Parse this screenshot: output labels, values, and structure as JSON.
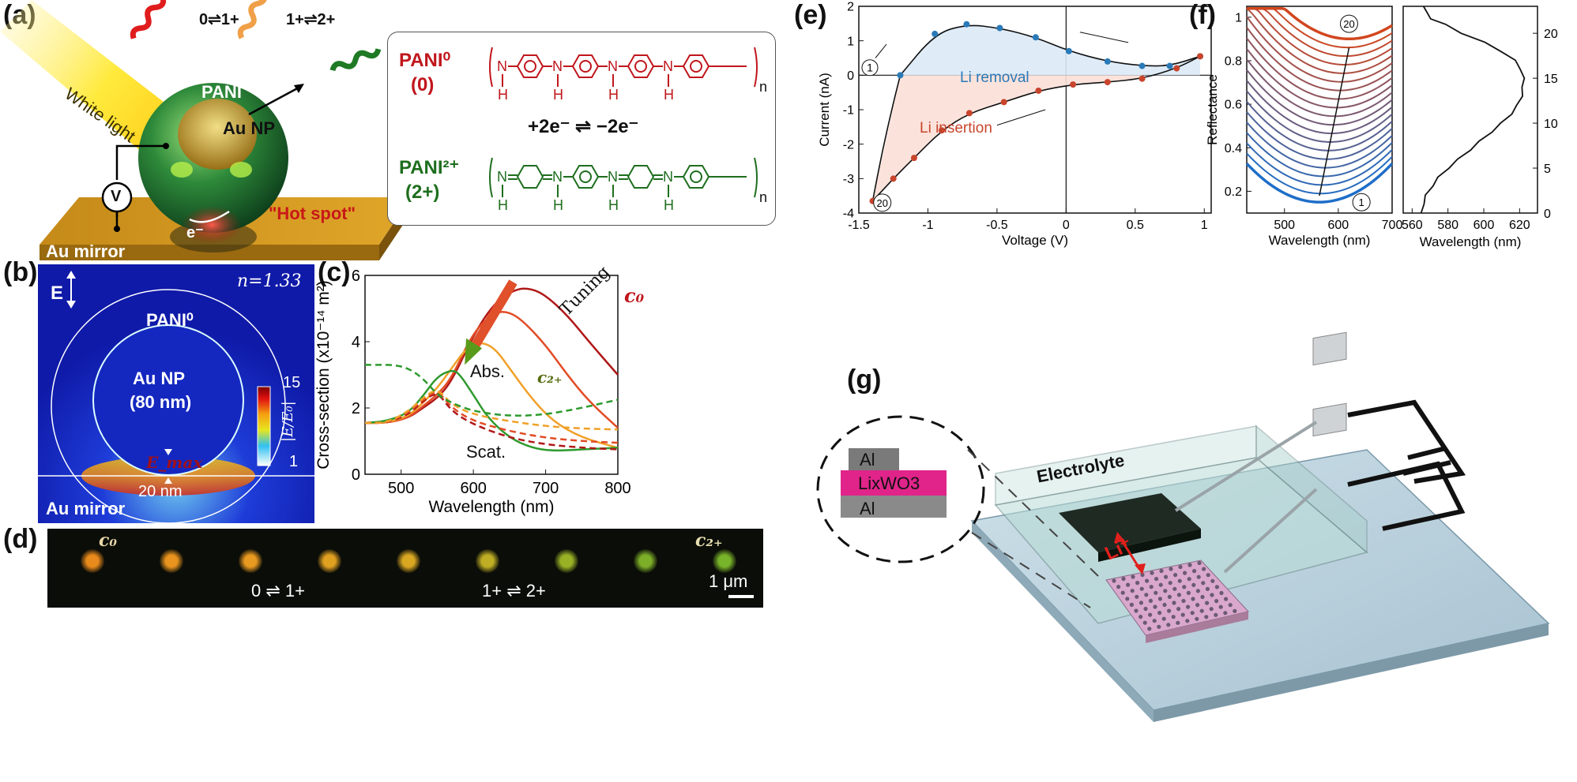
{
  "colors": {
    "pani0": "#c0161c",
    "pani2": "#1e6e1e",
    "accent_blue": "#2a7ab8",
    "accent_red": "#c8452c",
    "gold": "#d4a017"
  },
  "panel_a": {
    "label": "(a)",
    "white_light": "White light",
    "pani": "PANI",
    "au_np": "Au NP",
    "hot_spot": "\"Hot spot\"",
    "electron": "e⁻",
    "au_mirror": "Au mirror",
    "voltmeter": "V",
    "transition1": "0⇌1+",
    "transition2": "1+⇌2+",
    "pani0_name": "PANI⁰",
    "pani0_state": "(0)",
    "pani2_name": "PANI²⁺",
    "pani2_state": "(2+)",
    "redox": "+2e⁻ ⇌ −2e⁻",
    "chain_sub": "n"
  },
  "panel_b": {
    "label": "(b)",
    "field": "E",
    "n_value": "n=1.33",
    "pani0": "PANI⁰",
    "au_np": "Au NP",
    "size": "(80 nm)",
    "emax": "E_max",
    "gap": "20 nm",
    "mirror": "Au mirror",
    "cbar_max": "15",
    "cbar_min": "1",
    "cbar_label": "|E/E₀|"
  },
  "panel_c": {
    "label": "(c)",
    "tuning": "Tuning",
    "c0": "c₀",
    "c2": "c₂₊",
    "abs": "Abs.",
    "scat": "Scat."
  },
  "panel_d": {
    "label": "(d)",
    "c0": "c₀",
    "c2": "c₂₊",
    "t1": "0 ⇌ 1+",
    "t2": "1+ ⇌ 2+",
    "scale": "1 μm",
    "spots": [
      "#e88a1c",
      "#e8941e",
      "#e99a20",
      "#e0a020",
      "#d9a722",
      "#bfae24",
      "#98b226",
      "#7cae28",
      "#78b42a"
    ]
  },
  "panel_e": {
    "label": "(e)",
    "li_removal": "Li removal",
    "li_insertion": "Li insertion",
    "start": "1",
    "end": "20"
  },
  "panel_f": {
    "label": "(f)",
    "marker_top": "20",
    "marker_bottom": "1"
  },
  "panel_g": {
    "label": "(g)",
    "electrolyte": "Electrolyte",
    "li": "Li⁺",
    "al_top": "Al",
    "liwo3": "LixWO3",
    "al_bottom": "Al"
  },
  "chart_data": [
    {
      "type": "line",
      "title": "",
      "xlabel": "Wavelength (nm)",
      "ylabel": "Cross-section (x10⁻¹⁴ m²)",
      "xlim": [
        450,
        800
      ],
      "ylim": [
        0,
        6
      ],
      "xticks": [
        500,
        600,
        700,
        800
      ],
      "yticks": [
        0,
        2,
        4,
        6
      ],
      "series": [
        {
          "name": "Scat. c0",
          "color": "#b01818",
          "dash": false,
          "x": [
            450,
            480,
            510,
            530,
            550,
            570,
            600,
            630,
            660,
            680,
            700,
            730,
            760,
            800
          ],
          "y": [
            1.55,
            1.55,
            1.7,
            2.0,
            2.3,
            2.8,
            4.2,
            5.2,
            5.6,
            5.6,
            5.4,
            4.8,
            4.0,
            3.0
          ]
        },
        {
          "name": "Scat. mid1",
          "color": "#e24c26",
          "dash": false,
          "x": [
            450,
            480,
            510,
            530,
            550,
            570,
            600,
            630,
            650,
            670,
            700,
            730,
            760,
            800
          ],
          "y": [
            1.55,
            1.55,
            1.7,
            2.05,
            2.4,
            2.9,
            4.3,
            4.9,
            4.9,
            4.6,
            3.9,
            3.0,
            2.2,
            1.4
          ]
        },
        {
          "name": "Scat. mid2",
          "color": "#f0a028",
          "dash": false,
          "x": [
            450,
            480,
            510,
            530,
            550,
            570,
            590,
            610,
            630,
            650,
            680,
            710,
            750,
            800
          ],
          "y": [
            1.55,
            1.55,
            1.75,
            2.15,
            2.6,
            3.2,
            3.8,
            4.0,
            3.8,
            3.2,
            2.3,
            1.6,
            1.1,
            0.8
          ]
        },
        {
          "name": "Scat. c2+",
          "color": "#2e9a2e",
          "dash": false,
          "x": [
            450,
            480,
            510,
            530,
            550,
            570,
            580,
            600,
            620,
            650,
            680,
            710,
            750,
            800
          ],
          "y": [
            1.55,
            1.6,
            1.85,
            2.35,
            2.95,
            3.15,
            3.05,
            2.4,
            1.7,
            1.1,
            0.8,
            0.7,
            0.75,
            0.8
          ]
        },
        {
          "name": "Abs. c0",
          "color": "#b01818",
          "dash": true,
          "x": [
            450,
            480,
            510,
            530,
            550,
            570,
            600,
            650,
            700,
            750,
            800
          ],
          "y": [
            1.55,
            1.55,
            1.8,
            2.2,
            2.5,
            1.9,
            1.5,
            1.1,
            0.9,
            0.8,
            0.75
          ]
        },
        {
          "name": "Abs. mid1",
          "color": "#e24c26",
          "dash": true,
          "x": [
            450,
            480,
            510,
            530,
            550,
            570,
            600,
            650,
            700,
            750,
            800
          ],
          "y": [
            1.55,
            1.55,
            1.85,
            2.25,
            2.55,
            2.0,
            1.6,
            1.3,
            1.1,
            1.0,
            0.95
          ]
        },
        {
          "name": "Abs. mid2",
          "color": "#f0a028",
          "dash": true,
          "x": [
            450,
            480,
            510,
            530,
            550,
            570,
            600,
            650,
            700,
            750,
            800
          ],
          "y": [
            1.55,
            1.55,
            1.9,
            2.3,
            2.6,
            2.1,
            1.8,
            1.6,
            1.45,
            1.38,
            1.35
          ]
        },
        {
          "name": "Abs. c2+",
          "color": "#2e9a2e",
          "dash": true,
          "x": [
            450,
            470,
            490,
            510,
            530,
            550,
            570,
            600,
            650,
            700,
            750,
            800
          ],
          "y": [
            3.3,
            3.3,
            3.3,
            3.2,
            2.9,
            2.4,
            2.15,
            1.9,
            1.75,
            1.8,
            2.0,
            2.25
          ]
        }
      ]
    },
    {
      "type": "line",
      "title": "",
      "xlabel": "Voltage (V)",
      "ylabel": "Current (nA)",
      "xlim": [
        -1.5,
        1.05
      ],
      "ylim": [
        -4,
        2
      ],
      "xticks": [
        -1.5,
        -1,
        -0.5,
        0,
        0.5,
        1
      ],
      "yticks": [
        -4,
        -3,
        -2,
        -1,
        0,
        1,
        2
      ],
      "series": [
        {
          "name": "Li removal",
          "color": "#2a7ab8",
          "x": [
            -1.2,
            -0.95,
            -0.72,
            -0.48,
            -0.22,
            0.02,
            0.3,
            0.55,
            0.75,
            0.97
          ],
          "y": [
            0.0,
            1.2,
            1.48,
            1.37,
            1.1,
            0.7,
            0.4,
            0.27,
            0.27,
            0.55
          ]
        },
        {
          "name": "Li insertion",
          "color": "#c8452c",
          "x": [
            0.97,
            0.8,
            0.55,
            0.3,
            0.05,
            -0.2,
            -0.45,
            -0.7,
            -0.9,
            -1.1,
            -1.25,
            -1.4
          ],
          "y": [
            0.55,
            0.2,
            -0.1,
            -0.2,
            -0.27,
            -0.45,
            -0.78,
            -1.1,
            -1.6,
            -2.4,
            -3.0,
            -3.65
          ]
        }
      ]
    },
    {
      "type": "line",
      "title": "",
      "xlabel": "Wavelength (nm)",
      "ylabel": "Reflectance",
      "xlim": [
        430,
        700
      ],
      "ylim": [
        0.1,
        1.05
      ],
      "xticks": [
        500,
        600,
        700
      ],
      "yticks": [
        0.2,
        0.4,
        0.6,
        0.8,
        1
      ],
      "series_count": 20,
      "min_wavelength_first": 565,
      "min_reflectance_first": 0.15,
      "min_wavelength_last": 620,
      "min_reflectance_last": 0.9
    },
    {
      "type": "line",
      "title": "",
      "xlabel": "Wavelength (nm)",
      "ylabel": "",
      "xlim": [
        555,
        630
      ],
      "ylim": [
        0,
        23
      ],
      "xticks": [
        560,
        580,
        600,
        620
      ],
      "yticks": [
        0,
        5,
        10,
        15,
        20
      ],
      "x": [
        565,
        566,
        568,
        571,
        575,
        580,
        586,
        592,
        598,
        604,
        610,
        615,
        619,
        621,
        622,
        622,
        621,
        617,
        610,
        600,
        588,
        578,
        571,
        568,
        567
      ],
      "y": [
        0,
        1,
        2,
        3,
        4,
        5,
        6,
        7,
        8,
        9,
        10,
        11,
        12,
        13,
        14,
        15,
        16,
        17,
        18,
        19,
        20,
        21,
        21.6,
        22.2,
        23
      ]
    }
  ]
}
